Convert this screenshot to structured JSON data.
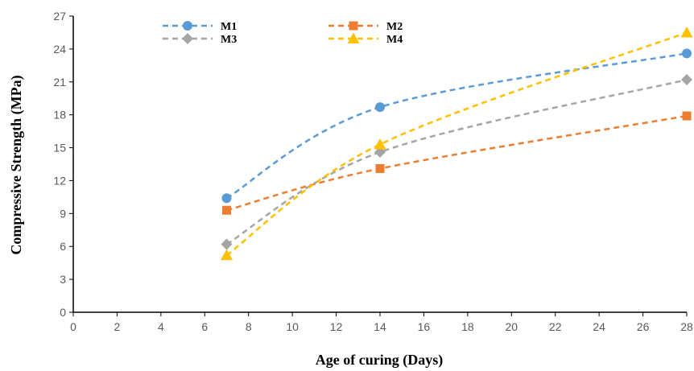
{
  "chart_data": {
    "type": "line",
    "title": "",
    "xlabel": "Age of curing (Days)",
    "ylabel": "Compressive Strength (MPa)",
    "xlim": [
      0,
      28
    ],
    "ylim": [
      0,
      27
    ],
    "xticks": [
      0,
      2,
      4,
      6,
      8,
      10,
      12,
      14,
      16,
      18,
      20,
      22,
      24,
      26,
      28
    ],
    "yticks": [
      0,
      3,
      6,
      9,
      12,
      15,
      18,
      21,
      24,
      27
    ],
    "grid": false,
    "smoothed": true,
    "line_style": "dashed",
    "legend_position": "top",
    "x": [
      7,
      14,
      28
    ],
    "series": [
      {
        "name": "M1",
        "values": [
          10.4,
          18.7,
          23.6
        ],
        "color": "#5B9BD5",
        "marker": "circle"
      },
      {
        "name": "M2",
        "values": [
          9.3,
          13.1,
          17.9
        ],
        "color": "#ED7D31",
        "marker": "square"
      },
      {
        "name": "M3",
        "values": [
          6.2,
          14.6,
          21.2
        ],
        "color": "#A5A5A5",
        "marker": "diamond"
      },
      {
        "name": "M4",
        "values": [
          5.2,
          15.3,
          25.5
        ],
        "color": "#FFC000",
        "marker": "triangle"
      }
    ]
  }
}
